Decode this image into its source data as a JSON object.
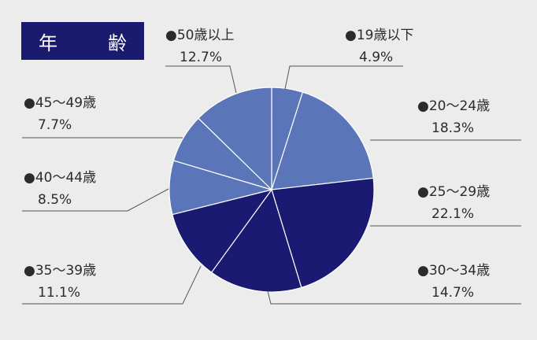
{
  "title": "年　齢",
  "colors": {
    "light": "#5a76b8",
    "dark": "#1a1a72",
    "line": "#555555"
  },
  "chart_data": {
    "type": "pie",
    "title": "年　齢",
    "slices": [
      {
        "label": "19歳以下",
        "value": 4.9,
        "display": "4.9%",
        "tone": "light"
      },
      {
        "label": "20～24歳",
        "value": 18.3,
        "display": "18.3%",
        "tone": "light"
      },
      {
        "label": "25～29歳",
        "value": 22.1,
        "display": "22.1%",
        "tone": "dark"
      },
      {
        "label": "30～34歳",
        "value": 14.7,
        "display": "14.7%",
        "tone": "dark"
      },
      {
        "label": "35～39歳",
        "value": 11.1,
        "display": "11.1%",
        "tone": "dark"
      },
      {
        "label": "40～44歳",
        "value": 8.5,
        "display": "8.5%",
        "tone": "light"
      },
      {
        "label": "45～49歳",
        "value": 7.7,
        "display": "7.7%",
        "tone": "light"
      },
      {
        "label": "50歳以上",
        "value": 12.7,
        "display": "12.7%",
        "tone": "light"
      }
    ]
  }
}
